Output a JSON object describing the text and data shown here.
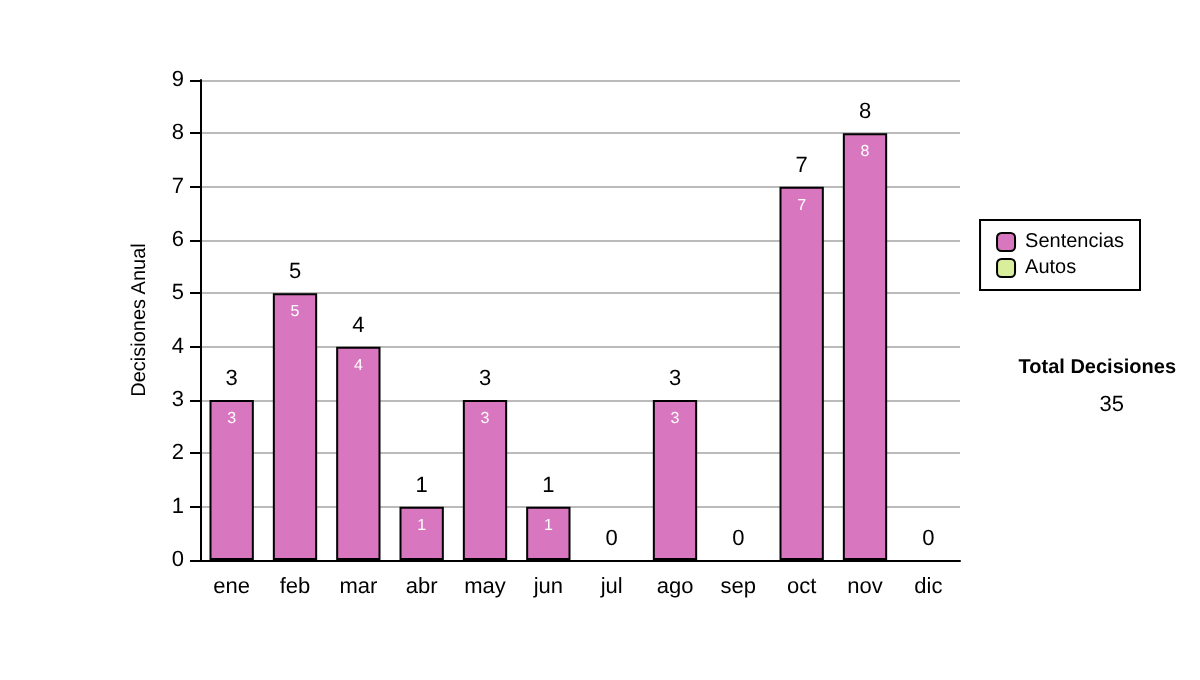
{
  "chart_data": {
    "type": "bar",
    "ylabel": "Decisiones Anual",
    "categories": [
      "ene",
      "feb",
      "mar",
      "abr",
      "may",
      "jun",
      "jul",
      "ago",
      "sep",
      "oct",
      "nov",
      "dic"
    ],
    "series": [
      {
        "name": "Sentencias",
        "color": "#d877bf",
        "values": [
          3,
          5,
          4,
          1,
          3,
          1,
          0,
          3,
          0,
          7,
          8,
          0
        ],
        "value_labels": [
          "3",
          "5",
          "4",
          "1",
          "3",
          "1",
          null,
          "3",
          null,
          "7",
          "8",
          null
        ]
      },
      {
        "name": "Autos",
        "color": "#d8ee9c",
        "values": [
          0,
          0,
          0,
          0,
          0,
          0,
          0,
          0,
          0,
          0,
          0,
          0
        ]
      }
    ],
    "stacked": true,
    "totals": [
      "3",
      "5",
      "4",
      "1",
      "3",
      "1",
      "0",
      "3",
      "0",
      "7",
      "8",
      "0"
    ],
    "ylim": [
      0,
      9
    ],
    "yticks": [
      0,
      1,
      2,
      3,
      4,
      5,
      6,
      7,
      8,
      9
    ],
    "grid": "y",
    "legend": "right",
    "annotations": [
      "Total Decisiones",
      "35"
    ]
  }
}
